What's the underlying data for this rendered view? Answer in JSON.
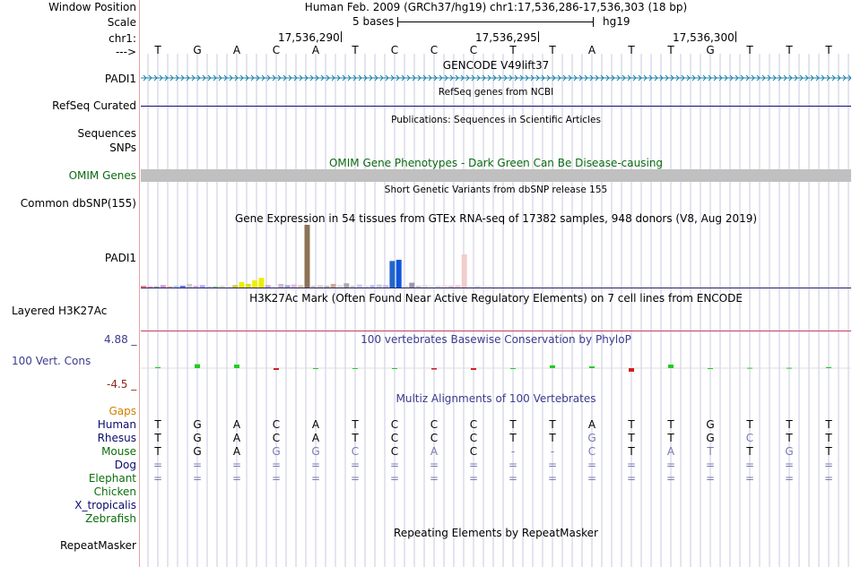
{
  "header": {
    "window_position_label": "Window Position",
    "scale_label": "Scale",
    "chrom_label": "chr1:",
    "strand_label": "--->",
    "assembly_position": "Human Feb. 2009 (GRCh37/hg19)   chr1:17,536,286-17,536,303 (18 bp)",
    "scale_text": "5 bases",
    "scale_db": "hg19",
    "coord_ticks": [
      "17,536,290",
      "17,536,295",
      "17,536,300"
    ]
  },
  "bases": [
    "T",
    "G",
    "A",
    "C",
    "A",
    "T",
    "C",
    "C",
    "C",
    "T",
    "T",
    "A",
    "T",
    "T",
    "G",
    "T",
    "T",
    "T"
  ],
  "tracks": {
    "gencode": {
      "title": "GENCODE V49lift37",
      "label": "PADI1",
      "color": "#1a84a8"
    },
    "refseq": {
      "title": "RefSeq genes from NCBI",
      "label": "RefSeq Curated",
      "color": "#0c0c78"
    },
    "publications": {
      "title": "Publications: Sequences in Scientific Articles",
      "label1": "Sequences",
      "label2": "SNPs"
    },
    "omim": {
      "title": "OMIM Gene Phenotypes - Dark Green Can Be Disease-causing",
      "label": "OMIM Genes",
      "color": "#0a6b10",
      "bar_color": "#c0c0c0"
    },
    "dbsnp": {
      "title": "Short Genetic Variants from dbSNP release 155",
      "label": "Common dbSNP(155)"
    },
    "gtex": {
      "title": "Gene Expression in 54 tissues from GTEx RNA-seq of 17382 samples, 948 donors (V8, Aug 2019)",
      "label": "PADI1",
      "bars": [
        {
          "v": 0.3,
          "c": "#ff8888"
        },
        {
          "v": 0.2,
          "c": "#ff99cc"
        },
        {
          "v": 0.2,
          "c": "#aaaaaa"
        },
        {
          "v": 0.4,
          "c": "#cc99cc"
        },
        {
          "v": 0.2,
          "c": "#ffaa88"
        },
        {
          "v": 0.3,
          "c": "#aaccff"
        },
        {
          "v": 0.3,
          "c": "#6677ff"
        },
        {
          "v": 0.6,
          "c": "#cccccc"
        },
        {
          "v": 0.3,
          "c": "#ddaadd"
        },
        {
          "v": 0.4,
          "c": "#aaaaff"
        },
        {
          "v": 0.2,
          "c": "#ccccff"
        },
        {
          "v": 0.2,
          "c": "#99cc99"
        },
        {
          "v": 0.3,
          "c": "#ddddbb"
        },
        {
          "v": 0.2,
          "c": "#eeeeee"
        },
        {
          "v": 0.4,
          "c": "#cccc33"
        },
        {
          "v": 0.9,
          "c": "#eeee00"
        },
        {
          "v": 0.6,
          "c": "#dddd22"
        },
        {
          "v": 1.2,
          "c": "#eeee11"
        },
        {
          "v": 1.6,
          "c": "#eeee00"
        },
        {
          "v": 0.4,
          "c": "#ccaacc"
        },
        {
          "v": 0.3,
          "c": "#eeeeee"
        },
        {
          "v": 0.6,
          "c": "#ccbbcc"
        },
        {
          "v": 0.4,
          "c": "#aaaacc"
        },
        {
          "v": 0.5,
          "c": "#ddbbdd"
        },
        {
          "v": 0.4,
          "c": "#ddccaa"
        },
        {
          "v": 10.4,
          "c": "#8c7256"
        },
        {
          "v": 0.3,
          "c": "#cccccc"
        },
        {
          "v": 0.4,
          "c": "#ddcccc"
        },
        {
          "v": 0.3,
          "c": "#bbbbbb"
        },
        {
          "v": 0.6,
          "c": "#ccaa99"
        },
        {
          "v": 0.4,
          "c": "#dddddd"
        },
        {
          "v": 0.7,
          "c": "#aaaaaa"
        },
        {
          "v": 0.3,
          "c": "#cccccc"
        },
        {
          "v": 0.5,
          "c": "#ccccee"
        },
        {
          "v": 0.3,
          "c": "#dddddd"
        },
        {
          "v": 0.4,
          "c": "#bbbbee"
        },
        {
          "v": 0.5,
          "c": "#ccccdd"
        },
        {
          "v": 0.4,
          "c": "#ccbbdd"
        },
        {
          "v": 4.4,
          "c": "#2266cc"
        },
        {
          "v": 4.6,
          "c": "#1155dd"
        },
        {
          "v": 0.3,
          "c": "#dddddd"
        },
        {
          "v": 0.8,
          "c": "#9999aa"
        },
        {
          "v": 0.3,
          "c": "#cccccc"
        },
        {
          "v": 0.4,
          "c": "#dddddd"
        },
        {
          "v": 0.4,
          "c": "#eeeeee"
        },
        {
          "v": 0.3,
          "c": "#dddddd"
        },
        {
          "v": 0.4,
          "c": "#ffdddd"
        },
        {
          "v": 0.3,
          "c": "#ddcccc"
        },
        {
          "v": 0.4,
          "c": "#ffcccc"
        },
        {
          "v": 5.5,
          "c": "#f3cccc"
        },
        {
          "v": 0.3,
          "c": "#eeeeee"
        },
        {
          "v": 0.3,
          "c": "#dddddd"
        },
        {
          "v": 0.3,
          "c": "#eeeeee"
        },
        {
          "v": 0.3,
          "c": "#eeeeee"
        }
      ]
    },
    "h3k27ac": {
      "title": "H3K27Ac Mark (Often Found Near Active Regulatory Elements) on 7 cell lines from ENCODE",
      "label": "Layered H3K27Ac"
    },
    "phylop": {
      "title": "100 vertebrates Basewise Conservation by PhyloP",
      "label": "100 Vert. Cons",
      "max_label": "4.88 _",
      "min_label": "-4.5 _",
      "color": "#3b3b8f",
      "max_color": "#3b3b8f",
      "min_color": "#8b2a1a",
      "scores": [
        0.3,
        1.1,
        1.0,
        -0.5,
        0,
        0,
        0,
        -0.4,
        -0.5,
        0,
        0.8,
        0.5,
        -1.0,
        1.0,
        0,
        0.1,
        0.1,
        0.3
      ]
    },
    "multiz": {
      "title": "Multiz Alignments of 100 Vertebrates",
      "gaps_label": "Gaps",
      "gaps_color": "#d08000",
      "species": [
        {
          "name": "Human",
          "color": "#0a0a6e",
          "bases": [
            "T",
            "G",
            "A",
            "C",
            "A",
            "T",
            "C",
            "C",
            "C",
            "T",
            "T",
            "A",
            "T",
            "T",
            "G",
            "T",
            "T",
            "T"
          ]
        },
        {
          "name": "Rhesus",
          "color": "#0a0a6e",
          "bases": [
            "T",
            "G",
            "A",
            "C",
            "A",
            "T",
            "C",
            "C",
            "C",
            "T",
            "T",
            "G",
            "T",
            "T",
            "G",
            "C",
            "T",
            "T"
          ]
        },
        {
          "name": "Mouse",
          "color": "#0a6e0a",
          "bases": [
            "T",
            "G",
            "A",
            "G",
            "G",
            "C",
            "C",
            "A",
            "C",
            "-",
            "-",
            "C",
            "T",
            "A",
            "T",
            "T",
            "G",
            "T"
          ]
        },
        {
          "name": "Dog",
          "color": "#0a0a6e",
          "bases": [
            "=",
            "=",
            "=",
            "=",
            "=",
            "=",
            "=",
            "=",
            "=",
            "=",
            "=",
            "=",
            "=",
            "=",
            "=",
            "=",
            "=",
            "="
          ]
        },
        {
          "name": "Elephant",
          "color": "#0a6e0a",
          "bases": [
            "=",
            "=",
            "=",
            "=",
            "=",
            "=",
            "=",
            "=",
            "=",
            "=",
            "=",
            "=",
            "=",
            "=",
            "=",
            "=",
            "=",
            "="
          ]
        },
        {
          "name": "Chicken",
          "color": "#0a6e0a",
          "bases": []
        },
        {
          "name": "X_tropicalis",
          "color": "#0a0a6e",
          "bases": []
        },
        {
          "name": "Zebrafish",
          "color": "#0a6e0a",
          "bases": []
        }
      ]
    },
    "repeatmasker": {
      "title": "Repeating Elements by RepeatMasker",
      "label": "RepeatMasker"
    }
  },
  "colors": {
    "grid": "#c8c8e0",
    "left_border": "#e8a0a0",
    "h3k27ac_line": "#c04060"
  }
}
